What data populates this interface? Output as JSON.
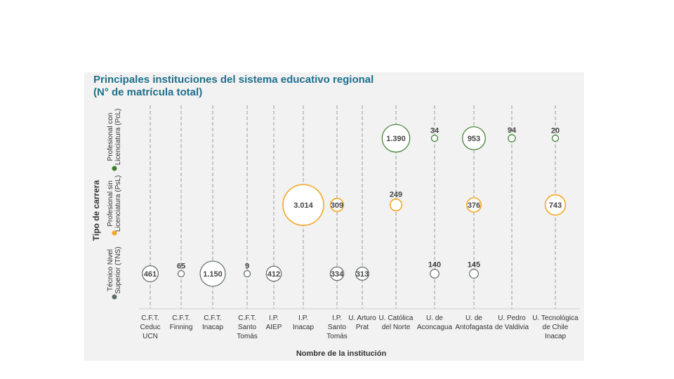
{
  "chart_data": {
    "type": "bubble",
    "title": "Principales instituciones del sistema educativo regional",
    "subtitle": "(N° de matrícula total)",
    "xlabel": "Nombre de la institución",
    "ylabel": "Tipo de carrera",
    "categories": [
      [
        "C.F.T.",
        "Ceduc",
        "UCN"
      ],
      [
        "C.F.T.",
        "Finning"
      ],
      [
        "C.F.T.",
        "Inacap"
      ],
      [
        "C.F.T.",
        "Santo",
        "Tomás"
      ],
      [
        "I.P.",
        "AIEP"
      ],
      [
        "I.P.",
        "Inacap"
      ],
      [
        "I.P.",
        "Santo",
        "Tomás"
      ],
      [
        "U. Arturo",
        "Prat"
      ],
      [
        "U. Católica",
        "del Norte"
      ],
      [
        "U. de",
        "Aconcagua"
      ],
      [
        "U. de",
        "Antofagasta"
      ],
      [
        "U. Pedro",
        "de Valdivia"
      ],
      [
        "U. Tecnológica",
        "de Chile",
        "Inacap"
      ]
    ],
    "rows": [
      {
        "key": "pcl",
        "label": [
          "Profesional con",
          "Licenciatura (PcL)"
        ],
        "color": "#3a7d2c"
      },
      {
        "key": "psl",
        "label": [
          "Profesional sin",
          "Licenciatura (PsL)"
        ],
        "color": "#f5a623"
      },
      {
        "key": "tns",
        "label": [
          "Técnico Nivel",
          "Superior (TNS)"
        ],
        "color": "#5f6b66"
      }
    ],
    "series": [
      {
        "key": "pcl",
        "values": [
          null,
          null,
          null,
          null,
          null,
          null,
          null,
          null,
          1390,
          34,
          953,
          94,
          20
        ]
      },
      {
        "key": "psl",
        "values": [
          null,
          null,
          null,
          null,
          null,
          3014,
          309,
          null,
          249,
          null,
          376,
          null,
          743
        ]
      },
      {
        "key": "tns",
        "values": [
          461,
          65,
          1150,
          9,
          412,
          null,
          334,
          313,
          null,
          140,
          145,
          null,
          null
        ]
      }
    ],
    "value_labels": {
      "pcl": [
        null,
        null,
        null,
        null,
        null,
        null,
        null,
        null,
        "1.390",
        "34",
        "953",
        "94",
        "20"
      ],
      "psl": [
        null,
        null,
        null,
        null,
        null,
        "3.014",
        "309",
        null,
        "249",
        null,
        "376",
        null,
        "743"
      ],
      "tns": [
        "461",
        "65",
        "1.150",
        "9",
        "412",
        null,
        "334",
        "313",
        null,
        "140",
        "145",
        null,
        null
      ]
    }
  }
}
